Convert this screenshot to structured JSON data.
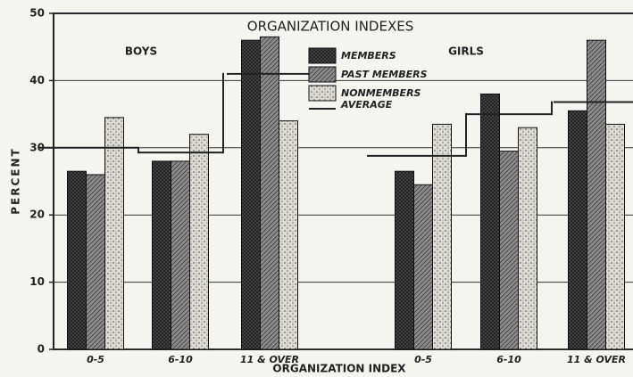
{
  "chart_data": {
    "type": "bar",
    "title": "ORGANIZATION INDEXES",
    "x_label": "ORGANIZATION INDEX",
    "y_label": "PERCENT",
    "group_labels": [
      "BOYS",
      "GIRLS"
    ],
    "categories": [
      "0-5",
      "6-10",
      "11 & OVER",
      "0-5",
      "6-10",
      "11 & OVER"
    ],
    "series": [
      {
        "name": "MEMBERS",
        "color": "#444444",
        "values": [
          26.5,
          28,
          46,
          26.5,
          38,
          35.5
        ]
      },
      {
        "name": "PAST MEMBERS",
        "color": "#8a8a8a",
        "values": [
          26,
          28,
          46.5,
          24.5,
          29.5,
          46
        ]
      },
      {
        "name": "NONMEMBERS",
        "color": "#dcdcd4",
        "values": [
          34.5,
          32,
          34,
          33.5,
          33,
          33.5
        ]
      },
      {
        "name": "AVERAGE",
        "color": "#222222",
        "style": "step",
        "values": [
          30,
          29.3,
          41,
          28.8,
          35,
          36.8
        ]
      }
    ],
    "ylim": [
      0,
      50
    ],
    "yticks": [
      0,
      10,
      20,
      30,
      40,
      50
    ],
    "grid": true
  }
}
